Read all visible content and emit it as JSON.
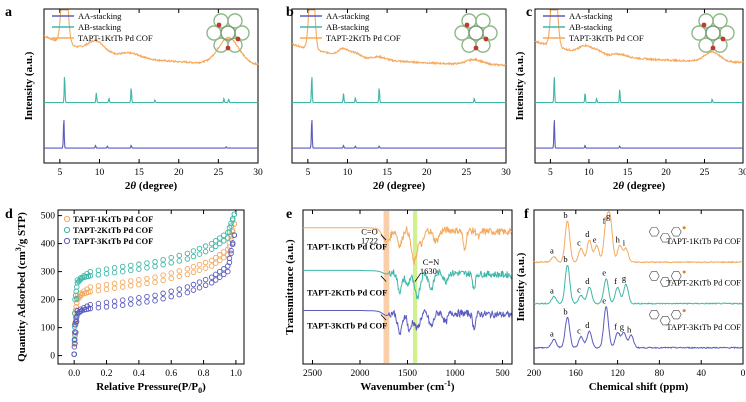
{
  "figure": {
    "colors": {
      "orange": "#F5A95C",
      "teal": "#3FB7A8",
      "purple": "#5A5BBF",
      "orange_text": "#F08A24",
      "teal_text": "#1E9E8E",
      "purple_text": "#2E2E9E",
      "highlight_orange": "#F7C79A",
      "highlight_green": "#C9EE7A"
    }
  },
  "chart_data": [
    {
      "id": "a",
      "letter": "a",
      "type": "line",
      "title": "",
      "xlabel_prefix": "2",
      "xlabel_theta": "θ",
      "xlabel_suffix": " (degree)",
      "ylabel": "Intensity (a.u.)",
      "xlim": [
        3,
        30
      ],
      "xticks": [
        "5",
        "10",
        "15",
        "20",
        "25",
        "30"
      ],
      "xtick_values": [
        5,
        10,
        15,
        20,
        25,
        30
      ],
      "legend": [
        "AA-stacking",
        "AB-stacking",
        "TAPT-1KtTb Pd COF"
      ],
      "series": [
        {
          "name": "TAPT-1KtTb Pd COF",
          "type": "experimental",
          "offset": 0.72,
          "baseline": 0.22,
          "peaks": [
            [
              5.6,
              0.62,
              0.35
            ],
            [
              9.6,
              0.08,
              1.0
            ],
            [
              14.0,
              0.03,
              1.2
            ],
            [
              26.3,
              0.19,
              1.3
            ]
          ]
        },
        {
          "name": "AB-stacking",
          "type": "simulated",
          "offset": 0.38,
          "peaks": [
            [
              5.6,
              0.2
            ],
            [
              9.6,
              0.07
            ],
            [
              11.2,
              0.03
            ],
            [
              14.0,
              0.11
            ],
            [
              17.0,
              0.02
            ],
            [
              25.7,
              0.03
            ],
            [
              26.3,
              0.025
            ]
          ]
        },
        {
          "name": "AA-stacking",
          "type": "simulated",
          "offset": 0.05,
          "peaks": [
            [
              5.5,
              0.22
            ],
            [
              9.5,
              0.02
            ],
            [
              11.0,
              0.015
            ],
            [
              14.0,
              0.02
            ],
            [
              26.0,
              0.01
            ]
          ]
        }
      ]
    },
    {
      "id": "b",
      "letter": "b",
      "type": "line",
      "title": "",
      "xlabel_prefix": "2",
      "xlabel_theta": "θ",
      "xlabel_suffix": " (degree)",
      "ylabel": "",
      "xlim": [
        3,
        30
      ],
      "xticks": [
        "5",
        "10",
        "15",
        "20",
        "25",
        "30"
      ],
      "xtick_values": [
        5,
        10,
        15,
        20,
        25,
        30
      ],
      "legend": [
        "AA-stacking",
        "AB-stacking",
        "TAPT-2KtTb Pd COF"
      ],
      "series": [
        {
          "name": "TAPT-2KtTb Pd COF",
          "type": "experimental",
          "offset": 0.7,
          "baseline": 0.16,
          "peaks": [
            [
              5.5,
              0.66,
              0.3
            ],
            [
              9.5,
              0.05,
              0.6
            ],
            [
              11.0,
              0.03,
              0.6
            ],
            [
              14.0,
              0.02,
              0.8
            ],
            [
              26.0,
              0.035,
              1.0
            ]
          ]
        },
        {
          "name": "AB-stacking",
          "type": "simulated",
          "offset": 0.38,
          "peaks": [
            [
              5.5,
              0.2
            ],
            [
              9.5,
              0.07
            ],
            [
              11.0,
              0.035
            ],
            [
              14.0,
              0.11
            ],
            [
              26.0,
              0.03
            ]
          ]
        },
        {
          "name": "AA-stacking",
          "type": "simulated",
          "offset": 0.05,
          "peaks": [
            [
              5.5,
              0.22
            ],
            [
              9.5,
              0.02
            ],
            [
              11.0,
              0.015
            ],
            [
              14.0,
              0.015
            ]
          ]
        }
      ]
    },
    {
      "id": "c",
      "letter": "c",
      "type": "line",
      "title": "",
      "xlabel_prefix": "2",
      "xlabel_theta": "θ",
      "xlabel_suffix": " (degree)",
      "ylabel": "Intensity (a.u.)",
      "xlim": [
        3,
        30
      ],
      "xticks": [
        "5",
        "10",
        "15",
        "20",
        "25",
        "30"
      ],
      "xtick_values": [
        5,
        10,
        15,
        20,
        25,
        30
      ],
      "legend": [
        "AA-stacking",
        "AB-stacking",
        "TAPT-3KtTb Pd COF"
      ],
      "series": [
        {
          "name": "TAPT-3KtTb Pd COF",
          "type": "experimental",
          "offset": 0.72,
          "baseline": 0.16,
          "peaks": [
            [
              5.5,
              0.62,
              0.35
            ],
            [
              9.5,
              0.05,
              0.7
            ],
            [
              11.0,
              0.03,
              0.7
            ],
            [
              14.0,
              0.02,
              0.9
            ],
            [
              26.0,
              0.07,
              1.0
            ]
          ]
        },
        {
          "name": "AB-stacking",
          "type": "simulated",
          "offset": 0.38,
          "peaks": [
            [
              5.5,
              0.2
            ],
            [
              9.5,
              0.07
            ],
            [
              11.0,
              0.03
            ],
            [
              14.0,
              0.1
            ],
            [
              26.0,
              0.025
            ]
          ]
        },
        {
          "name": "AA-stacking",
          "type": "simulated",
          "offset": 0.05,
          "peaks": [
            [
              5.5,
              0.22
            ],
            [
              9.5,
              0.02
            ],
            [
              14.0,
              0.015
            ]
          ]
        }
      ]
    },
    {
      "id": "d",
      "letter": "d",
      "type": "line",
      "title": "",
      "xlabel": "Relative Pressure(P/P",
      "xlabel_sub": "0",
      "xlabel_end": ")",
      "ylabel_prefix": "Quantity Adsorbed (cm",
      "ylabel_sup": "3",
      "ylabel_suffix": "/g STP)",
      "xlim": [
        -0.1,
        1.05
      ],
      "ylim": [
        -30,
        520
      ],
      "xticks": [
        "0.0",
        "0.2",
        "0.4",
        "0.6",
        "0.8",
        "1.0"
      ],
      "xtick_values": [
        0.0,
        0.2,
        0.4,
        0.6,
        0.8,
        1.0
      ],
      "yticks": [
        "0",
        "100",
        "200",
        "300",
        "400",
        "500"
      ],
      "ytick_values": [
        0,
        100,
        200,
        300,
        400,
        500
      ],
      "legend": [
        "TAPT-1KtTb Pd COF",
        "TAPT-2KtTb Pd COF",
        "TAPT-3KtTb Pd COF"
      ],
      "series": [
        {
          "name": "TAPT-1KtTb Pd COF",
          "adsorption": [
            [
              0.0,
              5
            ],
            [
              0.005,
              150
            ],
            [
              0.02,
              200
            ],
            [
              0.05,
              220
            ],
            [
              0.1,
              228
            ],
            [
              0.3,
              245
            ],
            [
              0.5,
              262
            ],
            [
              0.7,
              290
            ],
            [
              0.85,
              320
            ],
            [
              0.95,
              360
            ],
            [
              0.99,
              470
            ]
          ],
          "desorption": [
            [
              0.99,
              470
            ],
            [
              0.95,
              380
            ],
            [
              0.85,
              340
            ],
            [
              0.7,
              310
            ],
            [
              0.5,
              280
            ],
            [
              0.3,
              262
            ],
            [
              0.1,
              245
            ],
            [
              0.02,
              215
            ],
            [
              0.0,
              5
            ]
          ]
        },
        {
          "name": "TAPT-2KtTb Pd COF",
          "adsorption": [
            [
              0.0,
              5
            ],
            [
              0.005,
              200
            ],
            [
              0.02,
              260
            ],
            [
              0.05,
              278
            ],
            [
              0.1,
              285
            ],
            [
              0.3,
              300
            ],
            [
              0.5,
              318
            ],
            [
              0.7,
              345
            ],
            [
              0.85,
              380
            ],
            [
              0.95,
              420
            ],
            [
              0.99,
              505
            ]
          ],
          "desorption": [
            [
              0.99,
              505
            ],
            [
              0.95,
              440
            ],
            [
              0.85,
              400
            ],
            [
              0.7,
              365
            ],
            [
              0.5,
              335
            ],
            [
              0.3,
              318
            ],
            [
              0.1,
              300
            ],
            [
              0.02,
              270
            ],
            [
              0.0,
              5
            ]
          ]
        },
        {
          "name": "TAPT-3KtTb Pd COF",
          "adsorption": [
            [
              0.0,
              5
            ],
            [
              0.005,
              110
            ],
            [
              0.02,
              150
            ],
            [
              0.05,
              162
            ],
            [
              0.1,
              168
            ],
            [
              0.3,
              180
            ],
            [
              0.5,
              196
            ],
            [
              0.7,
              225
            ],
            [
              0.85,
              260
            ],
            [
              0.95,
              300
            ],
            [
              0.99,
              430
            ]
          ],
          "desorption": [
            [
              0.99,
              430
            ],
            [
              0.95,
              320
            ],
            [
              0.85,
              280
            ],
            [
              0.7,
              245
            ],
            [
              0.5,
              215
            ],
            [
              0.3,
              198
            ],
            [
              0.1,
              182
            ],
            [
              0.02,
              160
            ],
            [
              0.0,
              5
            ]
          ]
        }
      ]
    },
    {
      "id": "e",
      "letter": "e",
      "type": "line",
      "title": "",
      "xlabel": "Wavenumber (cm",
      "xlabel_sup": "-1",
      "xlabel_end": ")",
      "ylabel": "Transmittance (a.u.)",
      "xlim": [
        2600,
        400
      ],
      "xticks": [
        "2500",
        "2000",
        "1500",
        "1000",
        "500"
      ],
      "xtick_values": [
        2500,
        2000,
        1500,
        1000,
        500
      ],
      "highlights": [
        [
          1722,
          60
        ],
        [
          1420,
          45
        ]
      ],
      "annotations": [
        "C=O",
        "1722",
        "C=N",
        "1630"
      ],
      "series": [
        {
          "name": "TAPT-1KtTb Pd COF",
          "offset": 0.93,
          "dips": [
            [
              1722,
              0.1,
              40
            ],
            [
              1580,
              0.12,
              25
            ],
            [
              1430,
              0.24,
              30
            ],
            [
              1350,
              0.1,
              25
            ],
            [
              1200,
              0.08,
              30
            ],
            [
              900,
              0.14,
              15
            ],
            [
              750,
              0.05,
              15
            ]
          ]
        },
        {
          "name": "TAPT-2KtTb Pd COF",
          "offset": 0.62,
          "dips": [
            [
              1722,
              0.02,
              40
            ],
            [
              1580,
              0.14,
              25
            ],
            [
              1500,
              0.1,
              20
            ],
            [
              1400,
              0.18,
              30
            ],
            [
              1250,
              0.12,
              25
            ],
            [
              1100,
              0.06,
              20
            ],
            [
              800,
              0.1,
              15
            ]
          ]
        },
        {
          "name": "TAPT-3KtTb Pd COF",
          "offset": 0.33,
          "dips": [
            [
              1722,
              0.03,
              40
            ],
            [
              1580,
              0.16,
              25
            ],
            [
              1480,
              0.14,
              20
            ],
            [
              1400,
              0.12,
              30
            ],
            [
              1250,
              0.1,
              25
            ],
            [
              1100,
              0.07,
              20
            ],
            [
              800,
              0.1,
              15
            ]
          ]
        }
      ]
    },
    {
      "id": "f",
      "letter": "f",
      "type": "line",
      "title": "",
      "xlabel": "Chemical shift (ppm)",
      "ylabel": "Intensity (a.u.)",
      "xlim": [
        200,
        0
      ],
      "xticks": [
        "200",
        "160",
        "120",
        "80",
        "40",
        "0"
      ],
      "xtick_values": [
        200,
        160,
        120,
        80,
        40,
        0
      ],
      "series": [
        {
          "name": "TAPT-1KtTb Pd COF",
          "offset": 0.68,
          "peaks": [
            [
              181,
              0.04,
              "a"
            ],
            [
              168,
              0.3,
              "b"
            ],
            [
              155,
              0.1,
              "c"
            ],
            [
              147,
              0.16,
              "d"
            ],
            [
              140,
              0.12,
              "e"
            ],
            [
              131,
              0.26,
              "f"
            ],
            [
              127,
              0.29,
              "g"
            ],
            [
              118,
              0.12,
              "h"
            ],
            [
              112,
              0.1,
              "i"
            ]
          ]
        },
        {
          "name": "TAPT-2KtTb Pd COF",
          "offset": 0.38,
          "peaks": [
            [
              181,
              0.05,
              "a"
            ],
            [
              168,
              0.28,
              "b"
            ],
            [
              155,
              0.06,
              "c"
            ],
            [
              147,
              0.12,
              "d"
            ],
            [
              131,
              0.18,
              "e"
            ],
            [
              120,
              0.12,
              "f"
            ],
            [
              112,
              0.14,
              "g"
            ]
          ]
        },
        {
          "name": "TAPT-3KtTb Pd COF",
          "offset": 0.06,
          "peaks": [
            [
              181,
              0.06,
              "a"
            ],
            [
              168,
              0.22,
              "b"
            ],
            [
              155,
              0.08,
              "c"
            ],
            [
              147,
              0.12,
              "d"
            ],
            [
              131,
              0.3,
              "e"
            ],
            [
              120,
              0.11,
              "f"
            ],
            [
              114,
              0.11,
              "g"
            ],
            [
              107,
              0.09,
              "h"
            ]
          ]
        }
      ]
    }
  ]
}
